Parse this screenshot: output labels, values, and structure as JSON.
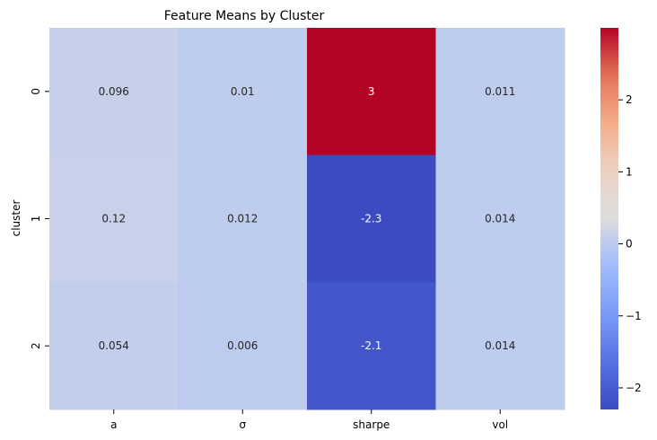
{
  "chart_data": {
    "type": "heatmap",
    "title": "Feature Means by Cluster",
    "xlabel": "",
    "ylabel": "cluster",
    "columns": [
      "a",
      "σ",
      "sharpe",
      "vol"
    ],
    "rows": [
      "0",
      "1",
      "2"
    ],
    "values": [
      [
        0.096,
        0.01,
        3.0,
        0.011
      ],
      [
        0.12,
        0.012,
        -2.3,
        0.014
      ],
      [
        0.054,
        0.006,
        -2.1,
        0.014
      ]
    ],
    "annotations": [
      [
        "0.096",
        "0.01",
        "3",
        "0.011"
      ],
      [
        "0.12",
        "0.012",
        "-2.3",
        "0.014"
      ],
      [
        "0.054",
        "0.006",
        "-2.1",
        "0.014"
      ]
    ],
    "colormap": "coolwarm",
    "vmin": -2.3,
    "vmax": 3.0,
    "colorbar_ticks": [
      "−2",
      "−1",
      "0",
      "1",
      "2"
    ],
    "colorbar_tick_values": [
      -2,
      -1,
      0,
      1,
      2
    ],
    "colors": {
      "min": "#3b4cc0",
      "mid": "#dddddd",
      "max": "#b40426"
    }
  }
}
